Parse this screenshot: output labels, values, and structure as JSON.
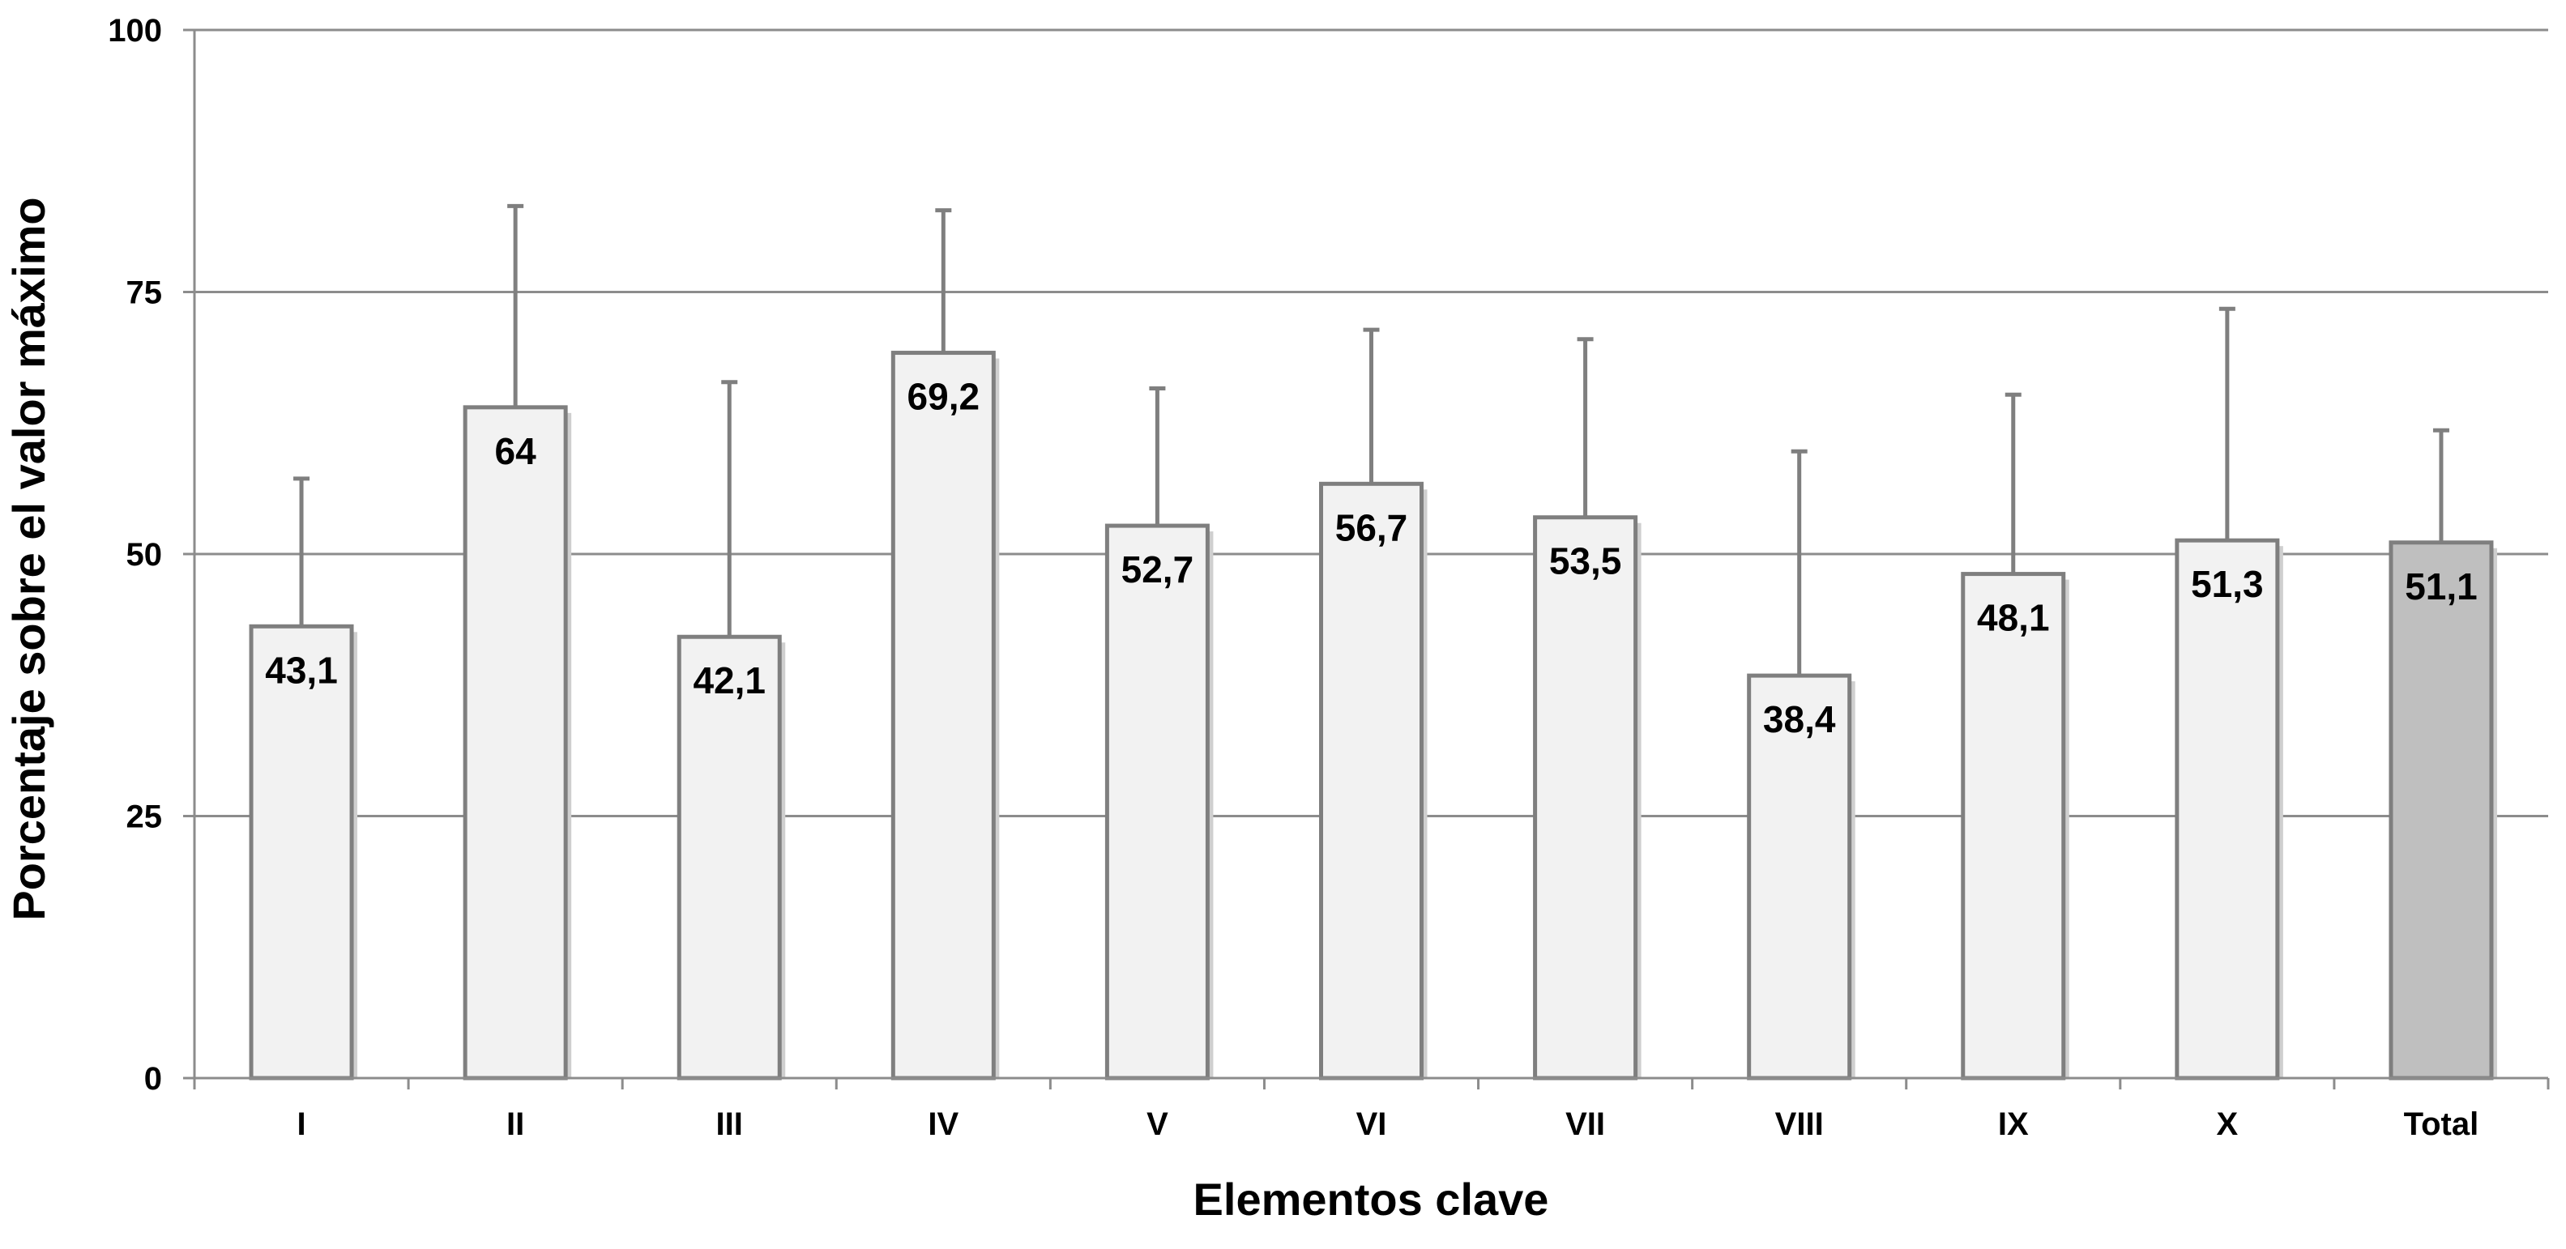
{
  "chart_data": {
    "type": "bar",
    "title": "",
    "xlabel": "Elementos clave",
    "ylabel": "Porcentaje sobre el valor máximo",
    "ylim": [
      0,
      100
    ],
    "yticks": [
      0,
      25,
      50,
      75,
      100
    ],
    "grid": true,
    "legend": "none",
    "categories": [
      "I",
      "II",
      "III",
      "IV",
      "V",
      "VI",
      "VII",
      "VIII",
      "IX",
      "X",
      "Total"
    ],
    "values": [
      43.1,
      64,
      42.1,
      69.2,
      52.7,
      56.7,
      53.5,
      38.4,
      48.1,
      51.3,
      51.1
    ],
    "value_labels": [
      "43,1",
      "64",
      "42,1",
      "69,2",
      "52,7",
      "56,7",
      "53,5",
      "38,4",
      "48,1",
      "51,3",
      "51,1"
    ],
    "error_bar_upper": [
      57.2,
      83.2,
      66.4,
      82.8,
      65.8,
      71.4,
      70.5,
      59.8,
      65.2,
      73.4,
      61.8
    ],
    "colors": {
      "bar_fill": "#f2f2f2",
      "total_bar_fill": "#bfbfbf",
      "bar_stroke": "#7f7f7f",
      "grid": "#8c8c8c",
      "axis": "#8c8c8c",
      "error_bar": "#7f7f7f"
    }
  }
}
